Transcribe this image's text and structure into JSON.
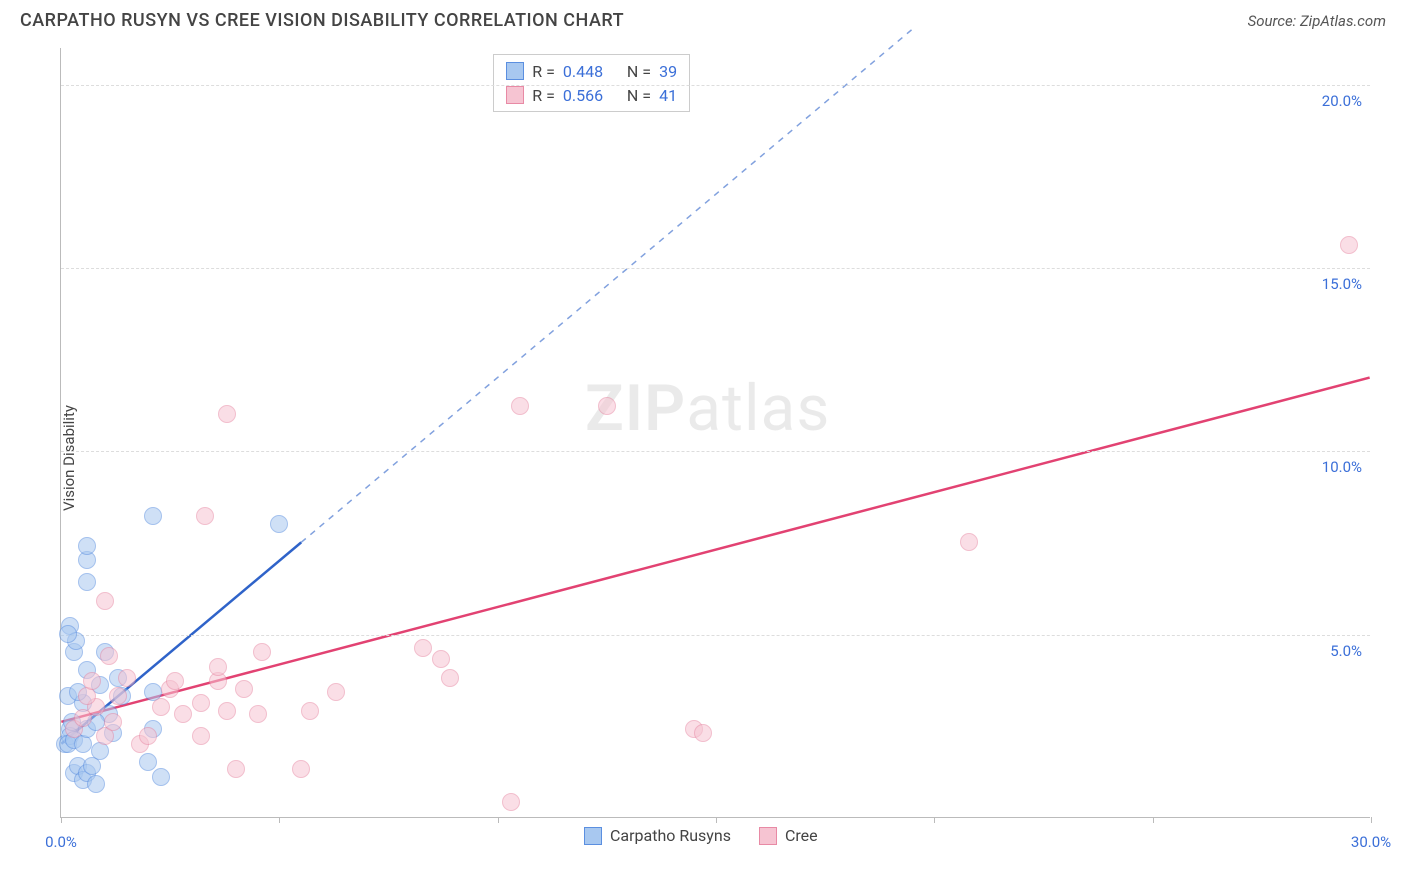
{
  "header": {
    "title": "CARPATHO RUSYN VS CREE VISION DISABILITY CORRELATION CHART",
    "source": "Source: ZipAtlas.com"
  },
  "chart": {
    "type": "scatter",
    "ylabel": "Vision Disability",
    "watermark": {
      "zip": "ZIP",
      "rest": "atlas"
    },
    "xlim": [
      0,
      30
    ],
    "ylim": [
      0,
      21
    ],
    "xtick_major": [
      0,
      30
    ],
    "xtick_minor": [
      5,
      10,
      15,
      20,
      25
    ],
    "ytick_major": [
      5,
      10,
      15,
      20
    ],
    "axis_color": "#bbbbbb",
    "grid_color": "#dddddd",
    "tick_label_color": "#3b6fd8",
    "label_fontsize": 15,
    "tick_fontsize": 15,
    "point_radius": 9,
    "point_opacity": 0.55,
    "series": [
      {
        "id": "blue",
        "name": "Carpatho Rusyns",
        "fill": "#a8c8f0",
        "stroke": "#5b8fe0",
        "line_color": "#2f63c9",
        "r_value": "0.448",
        "n_value": "39",
        "trend": {
          "x1": 0,
          "y1": 2.0,
          "x2_solid": 5.5,
          "y2_solid": 7.5,
          "x2_dash": 19.5,
          "y2_dash": 21.5
        },
        "points": [
          [
            0.1,
            2.0
          ],
          [
            0.2,
            2.4
          ],
          [
            0.2,
            2.2
          ],
          [
            0.15,
            2.0
          ],
          [
            0.3,
            2.1
          ],
          [
            0.25,
            2.6
          ],
          [
            0.15,
            3.3
          ],
          [
            0.3,
            1.2
          ],
          [
            0.4,
            1.4
          ],
          [
            0.5,
            1.0
          ],
          [
            0.6,
            1.2
          ],
          [
            0.7,
            1.4
          ],
          [
            0.5,
            2.0
          ],
          [
            0.6,
            2.4
          ],
          [
            0.5,
            3.1
          ],
          [
            0.4,
            3.4
          ],
          [
            0.6,
            4.0
          ],
          [
            0.3,
            4.5
          ],
          [
            0.2,
            5.2
          ],
          [
            0.35,
            4.8
          ],
          [
            0.15,
            5.0
          ],
          [
            0.6,
            6.4
          ],
          [
            0.6,
            7.0
          ],
          [
            0.6,
            7.4
          ],
          [
            2.0,
            1.5
          ],
          [
            2.3,
            1.1
          ],
          [
            2.1,
            2.4
          ],
          [
            2.1,
            8.2
          ],
          [
            2.1,
            3.4
          ],
          [
            1.4,
            3.3
          ],
          [
            1.2,
            2.3
          ],
          [
            1.1,
            2.8
          ],
          [
            0.9,
            1.8
          ],
          [
            0.9,
            3.6
          ],
          [
            1.0,
            4.5
          ],
          [
            1.3,
            3.8
          ],
          [
            5.0,
            8.0
          ],
          [
            0.8,
            2.6
          ],
          [
            0.8,
            0.9
          ]
        ]
      },
      {
        "id": "pink",
        "name": "Cree",
        "fill": "#f6c4d2",
        "stroke": "#e88aa5",
        "line_color": "#e24272",
        "r_value": "0.566",
        "n_value": "41",
        "trend": {
          "x1": 0,
          "y1": 2.6,
          "x2_solid": 30,
          "y2_solid": 12.0
        },
        "points": [
          [
            0.3,
            2.4
          ],
          [
            0.5,
            2.7
          ],
          [
            0.8,
            3.0
          ],
          [
            0.6,
            3.3
          ],
          [
            0.7,
            3.7
          ],
          [
            1.0,
            2.2
          ],
          [
            1.2,
            2.6
          ],
          [
            1.3,
            3.3
          ],
          [
            1.5,
            3.8
          ],
          [
            1.1,
            4.4
          ],
          [
            1.0,
            5.9
          ],
          [
            1.8,
            2.0
          ],
          [
            2.0,
            2.2
          ],
          [
            2.3,
            3.0
          ],
          [
            2.5,
            3.5
          ],
          [
            2.8,
            2.8
          ],
          [
            3.2,
            3.1
          ],
          [
            3.2,
            2.2
          ],
          [
            3.3,
            8.2
          ],
          [
            3.6,
            3.7
          ],
          [
            3.8,
            2.9
          ],
          [
            3.6,
            4.1
          ],
          [
            4.0,
            1.3
          ],
          [
            4.5,
            2.8
          ],
          [
            4.6,
            4.5
          ],
          [
            4.2,
            3.5
          ],
          [
            3.8,
            11.0
          ],
          [
            5.7,
            2.9
          ],
          [
            5.5,
            1.3
          ],
          [
            6.3,
            3.4
          ],
          [
            8.3,
            4.6
          ],
          [
            8.7,
            4.3
          ],
          [
            8.9,
            3.8
          ],
          [
            10.5,
            11.2
          ],
          [
            10.3,
            0.4
          ],
          [
            12.5,
            11.2
          ],
          [
            14.5,
            2.4
          ],
          [
            14.7,
            2.3
          ],
          [
            20.8,
            7.5
          ],
          [
            29.5,
            15.6
          ],
          [
            2.6,
            3.7
          ]
        ]
      }
    ],
    "legend_top": {
      "left_pct": 33,
      "r_label": "R =",
      "n_label": "N ="
    },
    "legend_bottom": {
      "left_pct": 40
    }
  }
}
